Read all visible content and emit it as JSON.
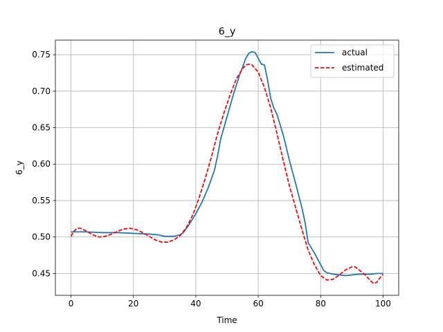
{
  "chart_data": {
    "type": "line",
    "title": "6_y",
    "xlabel": "Time",
    "ylabel": "6_y",
    "xlim": [
      -5,
      105
    ],
    "ylim": [
      0.42,
      0.77
    ],
    "xticks": [
      0,
      20,
      40,
      60,
      80,
      100
    ],
    "yticks": [
      0.45,
      0.5,
      0.55,
      0.6,
      0.65,
      0.7,
      0.75
    ],
    "xtick_labels": [
      "0",
      "20",
      "40",
      "60",
      "80",
      "100"
    ],
    "ytick_labels": [
      "0.45",
      "0.50",
      "0.55",
      "0.60",
      "0.65",
      "0.70",
      "0.75"
    ],
    "grid": true,
    "legend_position": "top-right",
    "series": [
      {
        "name": "actual",
        "color": "#1f77b4",
        "style": "solid",
        "points": [
          [
            0,
            0.507
          ],
          [
            5,
            0.507
          ],
          [
            10,
            0.506
          ],
          [
            15,
            0.506
          ],
          [
            20,
            0.505
          ],
          [
            25,
            0.504
          ],
          [
            28,
            0.503
          ],
          [
            30,
            0.501
          ],
          [
            33,
            0.501
          ],
          [
            35,
            0.503
          ],
          [
            36,
            0.506
          ],
          [
            38,
            0.518
          ],
          [
            40,
            0.532
          ],
          [
            42,
            0.548
          ],
          [
            44,
            0.568
          ],
          [
            46,
            0.592
          ],
          [
            47,
            0.612
          ],
          [
            48,
            0.635
          ],
          [
            50,
            0.665
          ],
          [
            52,
            0.695
          ],
          [
            54,
            0.722
          ],
          [
            55,
            0.733
          ],
          [
            56,
            0.745
          ],
          [
            57,
            0.752
          ],
          [
            58,
            0.754
          ],
          [
            59,
            0.753
          ],
          [
            60,
            0.745
          ],
          [
            61,
            0.737
          ],
          [
            62,
            0.736
          ],
          [
            63,
            0.715
          ],
          [
            64,
            0.69
          ],
          [
            65,
            0.677
          ],
          [
            66,
            0.668
          ],
          [
            68,
            0.64
          ],
          [
            70,
            0.605
          ],
          [
            72,
            0.573
          ],
          [
            74,
            0.54
          ],
          [
            75,
            0.52
          ],
          [
            76,
            0.492
          ],
          [
            78,
            0.478
          ],
          [
            80,
            0.462
          ],
          [
            81,
            0.454
          ],
          [
            82,
            0.451
          ],
          [
            84,
            0.449
          ],
          [
            86,
            0.448
          ],
          [
            88,
            0.447
          ],
          [
            90,
            0.448
          ],
          [
            92,
            0.449
          ],
          [
            94,
            0.449
          ],
          [
            96,
            0.449
          ],
          [
            98,
            0.45
          ],
          [
            100,
            0.45
          ]
        ]
      },
      {
        "name": "estimated",
        "color": "#ff0000",
        "style": "dashed",
        "points": [
          [
            0,
            0.501
          ],
          [
            1,
            0.508
          ],
          [
            2,
            0.512
          ],
          [
            3,
            0.512
          ],
          [
            5,
            0.508
          ],
          [
            7,
            0.503
          ],
          [
            9,
            0.5
          ],
          [
            11,
            0.501
          ],
          [
            13,
            0.504
          ],
          [
            15,
            0.508
          ],
          [
            17,
            0.511
          ],
          [
            19,
            0.512
          ],
          [
            21,
            0.51
          ],
          [
            23,
            0.506
          ],
          [
            25,
            0.501
          ],
          [
            27,
            0.496
          ],
          [
            29,
            0.493
          ],
          [
            31,
            0.493
          ],
          [
            33,
            0.496
          ],
          [
            35,
            0.502
          ],
          [
            37,
            0.513
          ],
          [
            39,
            0.53
          ],
          [
            41,
            0.553
          ],
          [
            43,
            0.58
          ],
          [
            45,
            0.61
          ],
          [
            47,
            0.642
          ],
          [
            49,
            0.67
          ],
          [
            51,
            0.695
          ],
          [
            53,
            0.717
          ],
          [
            55,
            0.731
          ],
          [
            56,
            0.736
          ],
          [
            57,
            0.737
          ],
          [
            58,
            0.736
          ],
          [
            60,
            0.726
          ],
          [
            62,
            0.705
          ],
          [
            64,
            0.677
          ],
          [
            66,
            0.642
          ],
          [
            68,
            0.605
          ],
          [
            70,
            0.57
          ],
          [
            72,
            0.54
          ],
          [
            74,
            0.51
          ],
          [
            76,
            0.482
          ],
          [
            78,
            0.462
          ],
          [
            80,
            0.447
          ],
          [
            82,
            0.441
          ],
          [
            84,
            0.442
          ],
          [
            86,
            0.448
          ],
          [
            88,
            0.455
          ],
          [
            90,
            0.459
          ],
          [
            91,
            0.459
          ],
          [
            92,
            0.456
          ],
          [
            94,
            0.449
          ],
          [
            96,
            0.44
          ],
          [
            97,
            0.436
          ],
          [
            98,
            0.438
          ],
          [
            99,
            0.444
          ],
          [
            100,
            0.449
          ]
        ]
      }
    ]
  }
}
